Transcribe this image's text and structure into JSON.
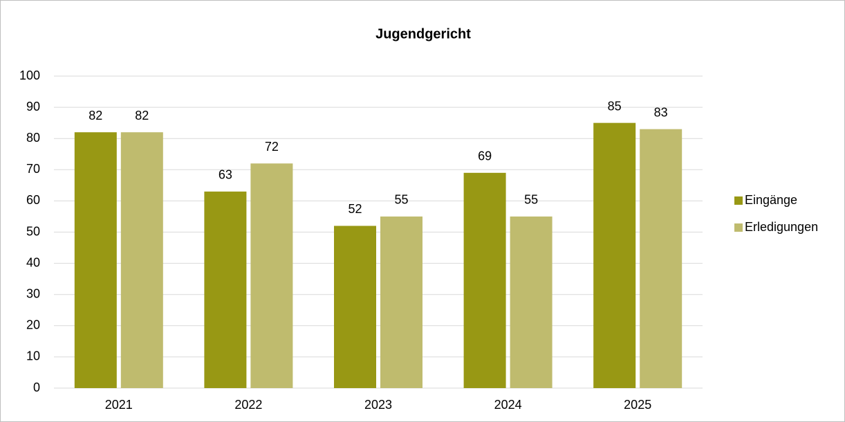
{
  "chart_data": {
    "type": "bar",
    "title": "Jugendgericht",
    "categories": [
      "2021",
      "2022",
      "2023",
      "2024",
      "2025"
    ],
    "series": [
      {
        "name": "Eingänge",
        "color": "#989814",
        "values": [
          82,
          63,
          52,
          69,
          85
        ]
      },
      {
        "name": "Erledigungen",
        "color": "#bfbb6e",
        "values": [
          82,
          72,
          55,
          55,
          83
        ]
      }
    ],
    "ylim": [
      0,
      100
    ],
    "yticks": [
      0,
      10,
      20,
      30,
      40,
      50,
      60,
      70,
      80,
      90,
      100
    ],
    "grid": true,
    "legend": "right"
  }
}
